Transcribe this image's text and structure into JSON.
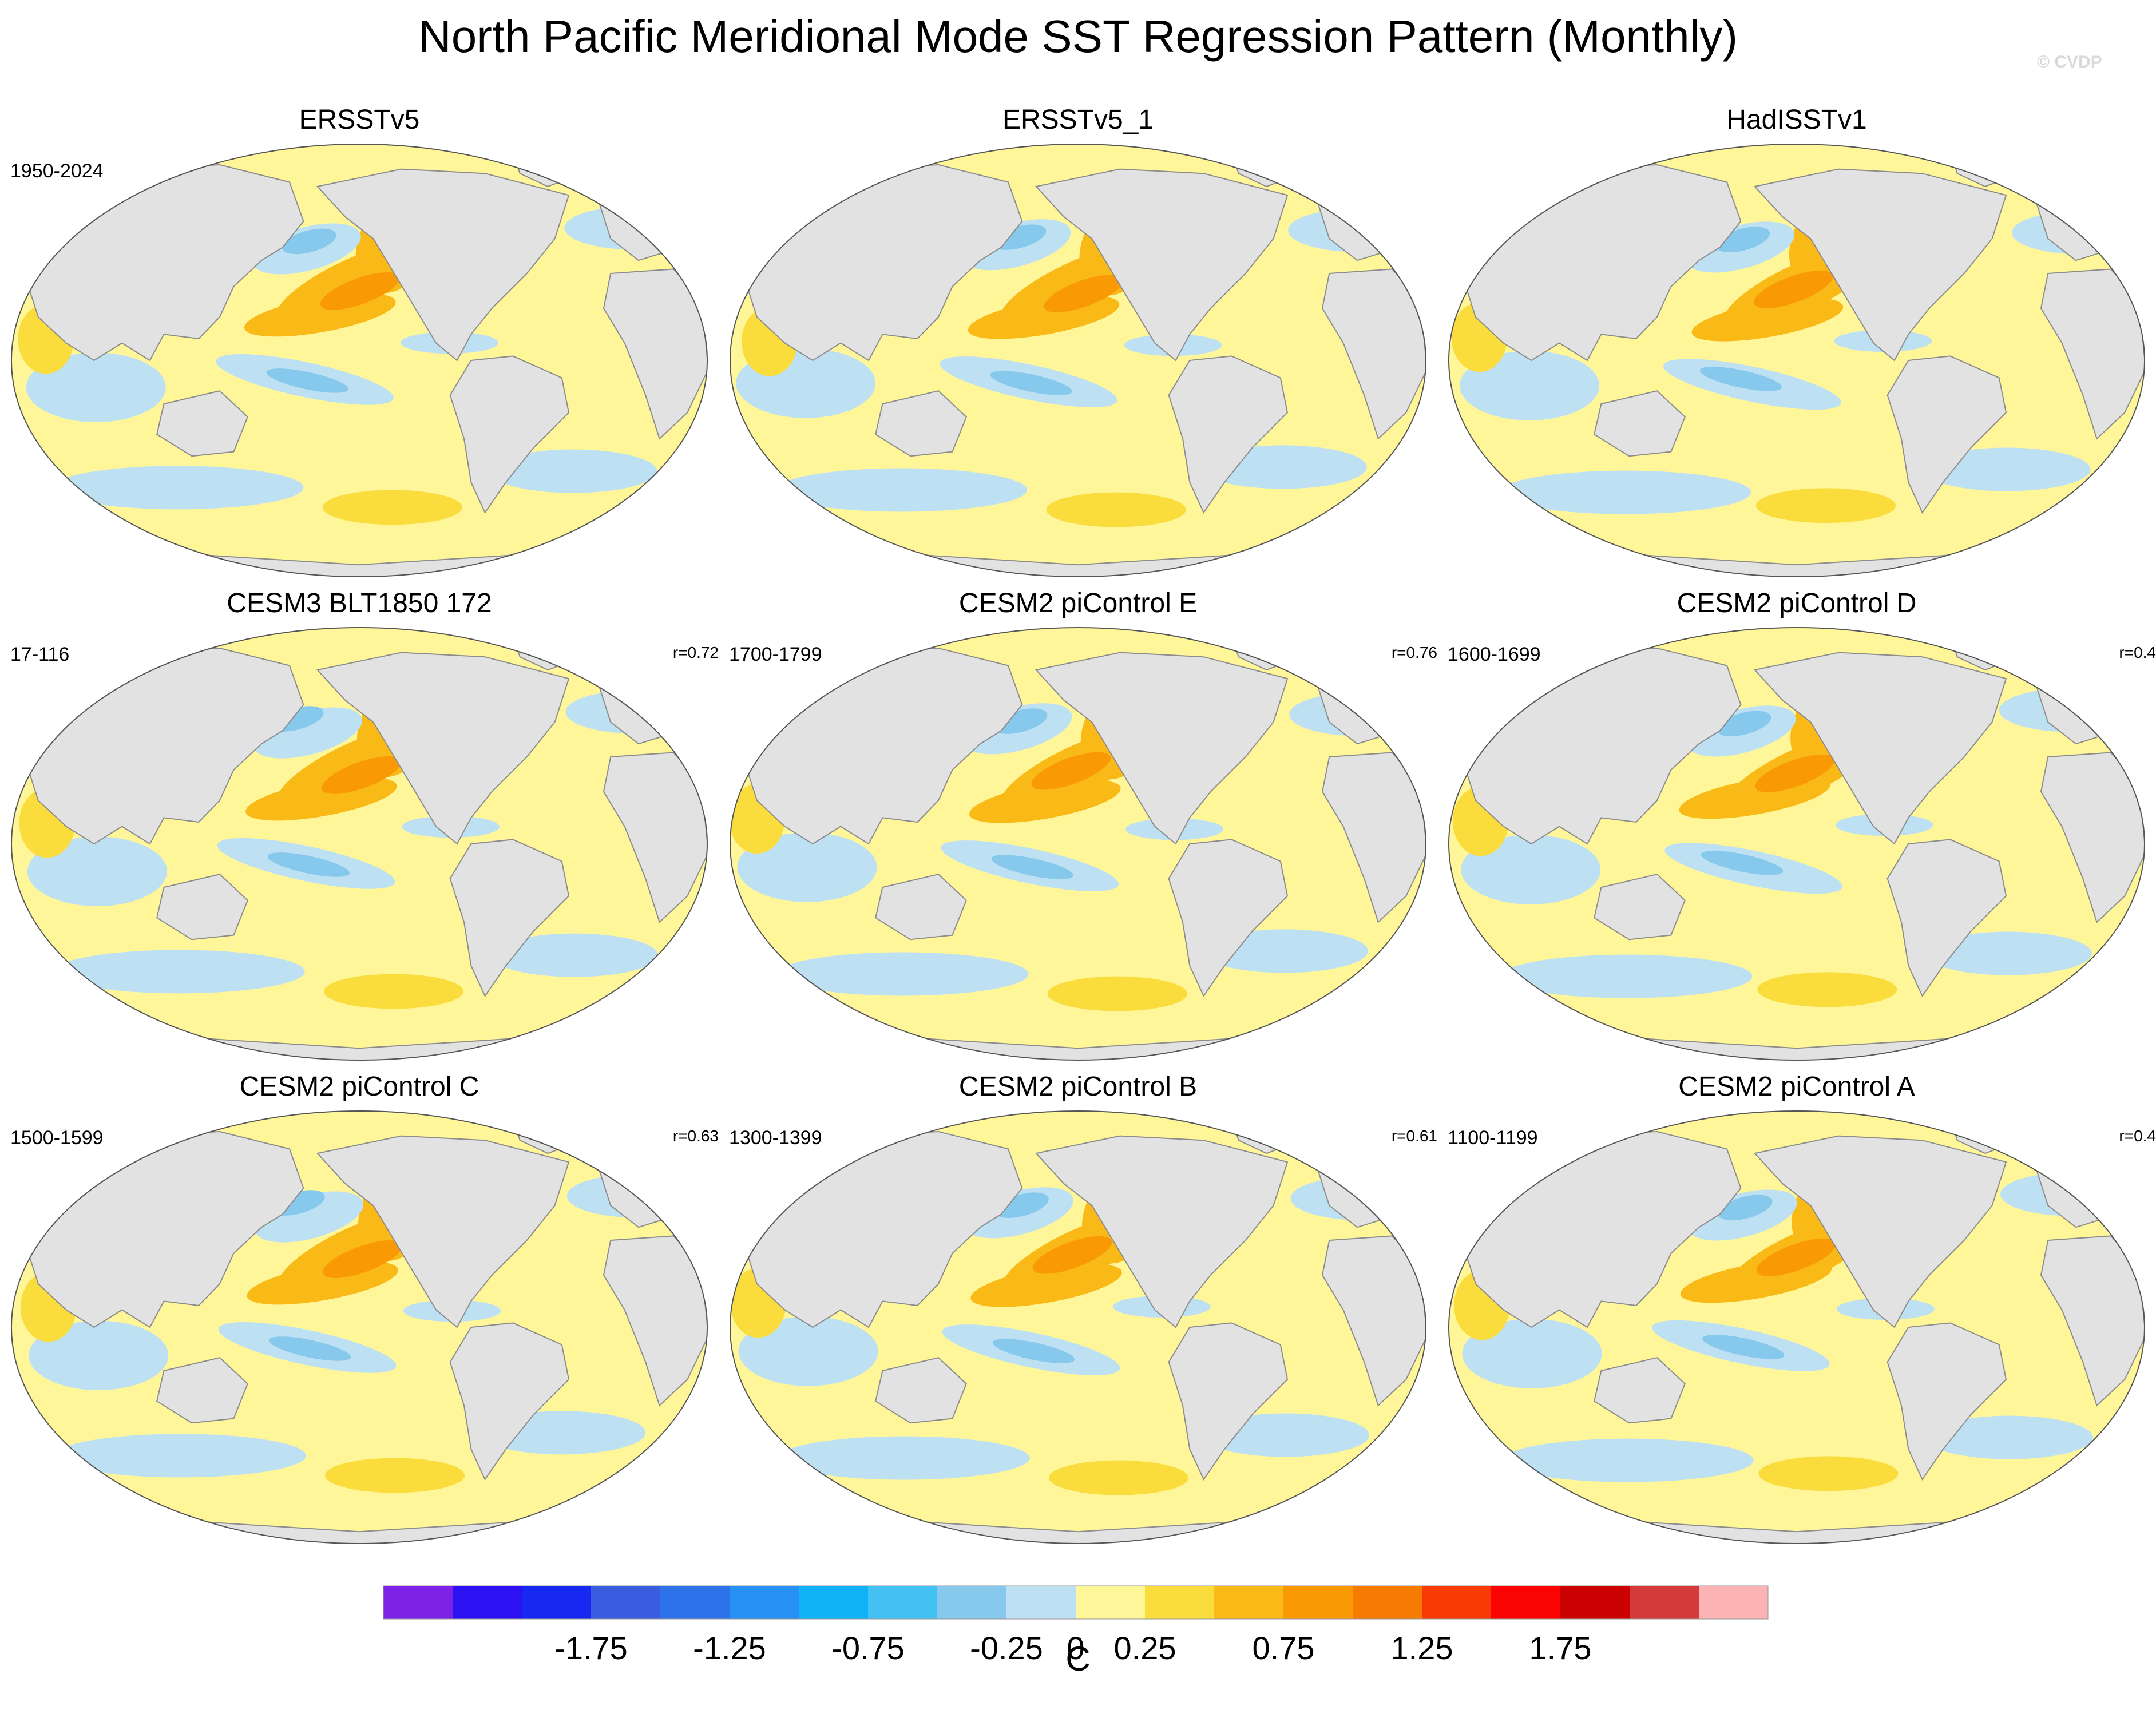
{
  "title": "North Pacific Meridional Mode SST Regression Pattern (Monthly)",
  "watermark": "© CVDP",
  "panels": [
    {
      "title": "ERSSTv5",
      "period": "1950-2024",
      "corr": ""
    },
    {
      "title": "ERSSTv5_1",
      "period": "",
      "corr": ""
    },
    {
      "title": "HadISSTv1",
      "period": "",
      "corr": ""
    },
    {
      "title": "CESM3 BLT1850 172",
      "period": "17-116",
      "corr": "r=0.72"
    },
    {
      "title": "CESM2 piControl E",
      "period": "1700-1799",
      "corr": "r=0.76"
    },
    {
      "title": "CESM2 piControl D",
      "period": "1600-1699",
      "corr": "r=0.4"
    },
    {
      "title": "CESM2 piControl C",
      "period": "1500-1599",
      "corr": "r=0.63"
    },
    {
      "title": "CESM2 piControl B",
      "period": "1300-1399",
      "corr": "r=0.61"
    },
    {
      "title": "CESM2 piControl A",
      "period": "1100-1199",
      "corr": "r=0.4"
    }
  ],
  "chart_data": {
    "type": "heatmap",
    "title": "North Pacific Meridional Mode SST Regression Pattern (Monthly)",
    "projection": "Robinson (global, Pacific-centred)",
    "units_label": "C",
    "panels": [
      "ERSSTv5",
      "ERSSTv5_1",
      "HadISSTv1",
      "CESM3 BLT1850 172",
      "CESM2 piControl E",
      "CESM2 piControl D",
      "CESM2 piControl C",
      "CESM2 piControl B",
      "CESM2 piControl A"
    ],
    "periods": [
      "1950-2024",
      "",
      "",
      "17-116",
      "1700-1799",
      "1600-1699",
      "1500-1599",
      "1300-1399",
      "1100-1199"
    ],
    "pattern_correlations": [
      "",
      "",
      "",
      "r=0.72",
      "r=0.76",
      "r=0.4",
      "r=0.63",
      "r=0.61",
      "r=0.4"
    ],
    "colorbar": {
      "levels": [
        -2.25,
        -2,
        -1.75,
        -1.5,
        -1.25,
        -1,
        -0.75,
        -0.5,
        -0.25,
        0,
        0.25,
        0.5,
        0.75,
        1,
        1.25,
        1.5,
        1.75,
        2,
        2.25
      ],
      "tick_labels": [
        "-1.75",
        "-1.25",
        "-0.75",
        "-0.25",
        "0",
        "0.25",
        "0.75",
        "1.25",
        "1.75"
      ],
      "tick_values": [
        -1.75,
        -1.25,
        -0.75,
        -0.25,
        0,
        0.25,
        0.75,
        1.25,
        1.75
      ],
      "colors": [
        "#7f22e8",
        "#2c12f2",
        "#1729f0",
        "#3a5de0",
        "#2e72ea",
        "#2690f5",
        "#0fb1f7",
        "#43c1f2",
        "#86c9ec",
        "#bde0f3",
        "#fff69a",
        "#fadd3d",
        "#f9b917",
        "#f99a05",
        "#f77a02",
        "#f83a04",
        "#f90303",
        "#cc0202",
        "#d53a3a",
        "#fbb3b3"
      ]
    },
    "colors": {
      "land": "#e2e2e2",
      "coast": "#8c8c8c",
      "ocean_zero": "#fff69a"
    }
  }
}
